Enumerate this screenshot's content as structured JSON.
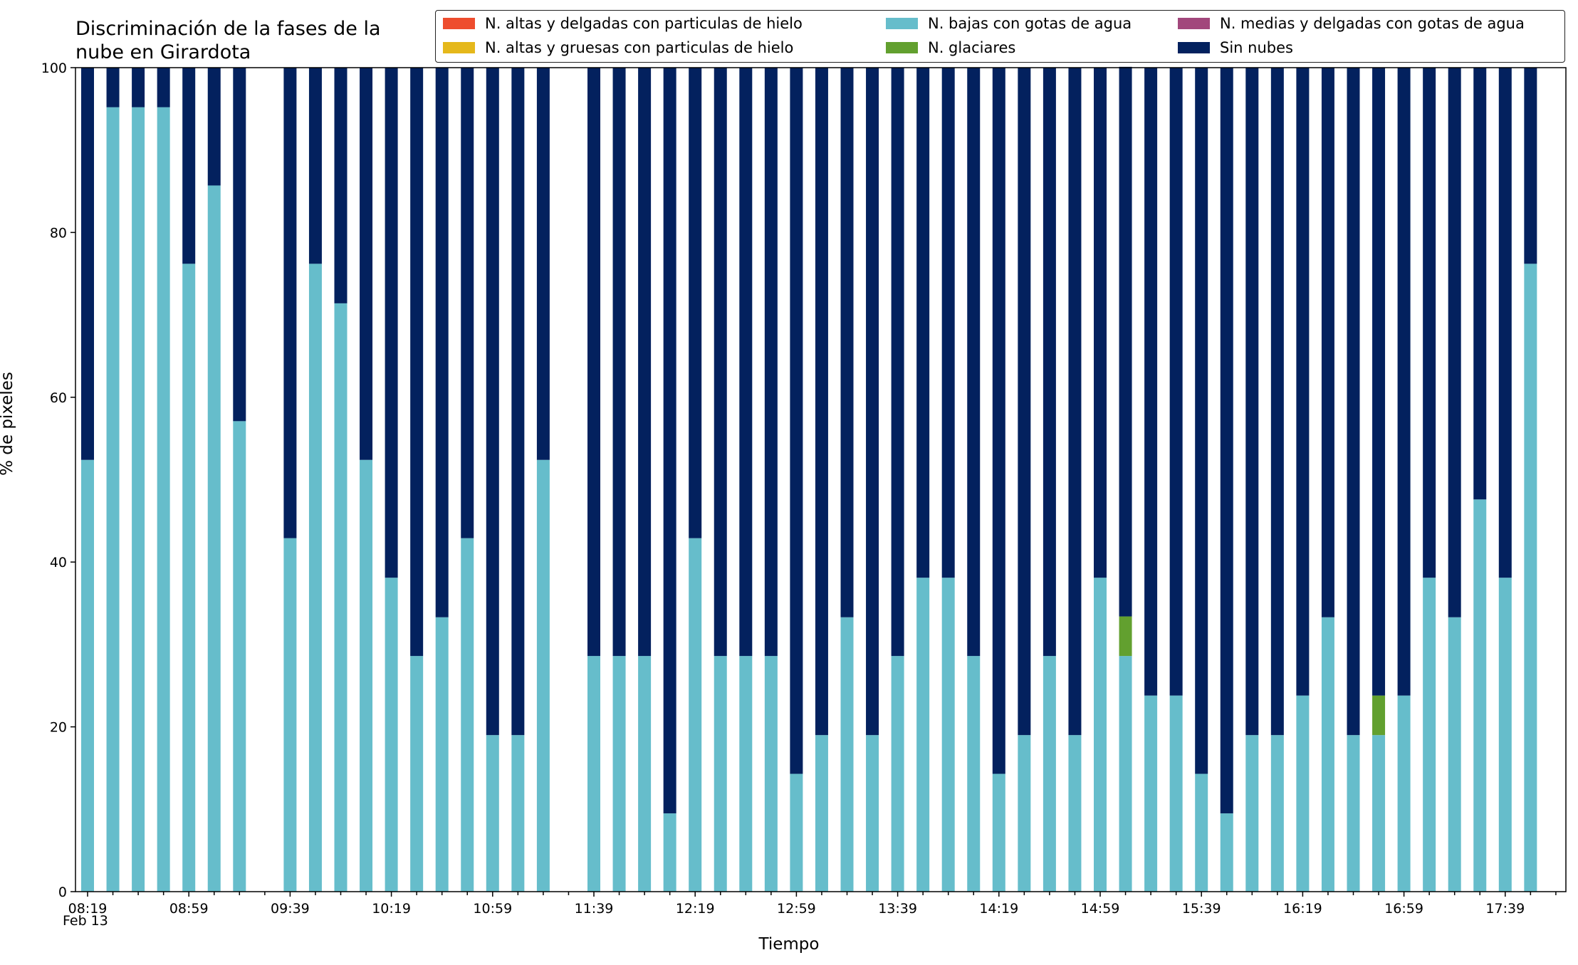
{
  "chart_data": {
    "type": "bar",
    "stacked": true,
    "title": "Discriminación de la fases de la nube en Girardota",
    "title_lines": [
      "Discriminación de la fases de la",
      "nube en Girardota"
    ],
    "xlabel": "Tiempo",
    "ylabel": "% de pixeles",
    "ylim": [
      0,
      100
    ],
    "yticks": [
      0,
      20,
      40,
      60,
      80,
      100
    ],
    "date_label": "Feb 13",
    "legend_position": "top-right",
    "grid": false,
    "x_start": "08:19",
    "x_step_minutes": 10,
    "x": [
      "08:19",
      "08:29",
      "08:39",
      "08:49",
      "08:59",
      "09:09",
      "09:19",
      "09:29",
      "09:39",
      "09:49",
      "09:59",
      "10:09",
      "10:19",
      "10:29",
      "10:39",
      "10:49",
      "10:59",
      "11:09",
      "11:19",
      "11:29",
      "11:39",
      "11:49",
      "11:59",
      "12:09",
      "12:19",
      "12:29",
      "12:39",
      "12:49",
      "12:59",
      "13:09",
      "13:19",
      "13:29",
      "13:39",
      "13:49",
      "13:59",
      "14:09",
      "14:19",
      "14:29",
      "14:39",
      "14:49",
      "14:59",
      "15:09",
      "15:19",
      "15:29",
      "15:39",
      "15:49",
      "15:59",
      "16:09",
      "16:19",
      "16:29",
      "16:39",
      "16:49",
      "16:59",
      "17:09",
      "17:19",
      "17:29",
      "17:39",
      "17:49"
    ],
    "xtick_labels": [
      "08:19",
      "08:59",
      "09:39",
      "10:19",
      "10:59",
      "11:39",
      "12:19",
      "12:59",
      "13:39",
      "14:19",
      "14:59",
      "15:39",
      "16:19",
      "16:59",
      "17:39"
    ],
    "series": [
      {
        "name": "N. altas y delgadas con particulas de hielo",
        "color": "#ee4d2e",
        "values": [
          0,
          0,
          0,
          0,
          0,
          0,
          0,
          null,
          0,
          0,
          0,
          0,
          0,
          0,
          0,
          0,
          0,
          0,
          0,
          null,
          0,
          0,
          0,
          0,
          0,
          0,
          0,
          0,
          0,
          0,
          0,
          0,
          0,
          0,
          0,
          0,
          0,
          0,
          0,
          0,
          0,
          0,
          0,
          0,
          0,
          0,
          0,
          0,
          0,
          0,
          0,
          0,
          0,
          0,
          0,
          0,
          0,
          0
        ]
      },
      {
        "name": "N. altas y gruesas con particulas de hielo",
        "color": "#e5b81b",
        "values": [
          0,
          0,
          0,
          0,
          0,
          0,
          0,
          null,
          0,
          0,
          0,
          0,
          0,
          0,
          0,
          0,
          0,
          0,
          0,
          null,
          0,
          0,
          0,
          0,
          0,
          0,
          0,
          0,
          0,
          0,
          0,
          0,
          0,
          0,
          0,
          0,
          0,
          0,
          0,
          0,
          0,
          0,
          0,
          0,
          0,
          0,
          0,
          0,
          0,
          0,
          0,
          0,
          0,
          0,
          0,
          0,
          0,
          0
        ]
      },
      {
        "name": "N. bajas con gotas de agua",
        "color": "#66bdcb",
        "values": [
          52.4,
          95.2,
          95.2,
          95.2,
          76.2,
          85.7,
          57.1,
          null,
          42.9,
          76.2,
          71.4,
          52.4,
          38.1,
          28.6,
          33.3,
          42.9,
          19.0,
          19.0,
          52.4,
          null,
          28.6,
          28.6,
          28.6,
          9.5,
          42.9,
          28.6,
          28.6,
          28.6,
          14.3,
          19.0,
          33.3,
          19.0,
          28.6,
          38.1,
          38.1,
          28.6,
          14.3,
          19.0,
          28.6,
          19.0,
          38.1,
          28.6,
          23.8,
          23.8,
          14.3,
          9.5,
          19.0,
          19.0,
          23.8,
          33.3,
          19.0,
          19.0,
          23.8,
          38.1,
          33.3,
          47.6,
          38.1,
          76.2
        ]
      },
      {
        "name": "N. glaciares",
        "color": "#62a02f",
        "values": [
          0,
          0,
          0,
          0,
          0,
          0,
          0,
          null,
          0,
          0,
          0,
          0,
          0,
          0,
          0,
          0,
          0,
          0,
          0,
          null,
          0,
          0,
          0,
          0,
          0,
          0,
          0,
          0,
          0,
          0,
          0,
          0,
          0,
          0,
          0,
          0,
          0,
          0,
          0,
          0,
          0,
          4.8,
          0,
          0,
          0,
          0,
          0,
          0,
          0,
          0,
          0,
          4.8,
          0,
          0,
          0,
          0,
          0,
          0
        ]
      },
      {
        "name": "N. medias y delgadas con gotas de agua",
        "color": "#a2477c",
        "values": [
          0,
          0,
          0,
          0,
          0,
          0,
          0,
          null,
          0,
          0,
          0,
          0,
          0,
          0,
          0,
          0,
          0,
          0,
          0,
          null,
          0,
          0,
          0,
          0,
          0,
          0,
          0,
          0,
          0,
          0,
          0,
          0,
          0,
          0,
          0,
          0,
          0,
          0,
          0,
          0,
          0,
          0,
          0,
          0,
          0,
          0,
          0,
          0,
          0,
          0,
          0,
          0,
          0,
          0,
          0,
          0,
          0,
          0
        ]
      },
      {
        "name": "Sin nubes",
        "color": "#03215e",
        "values": [
          47.6,
          4.8,
          4.8,
          4.8,
          23.8,
          14.3,
          42.9,
          null,
          57.1,
          23.8,
          28.6,
          47.6,
          61.9,
          71.4,
          66.7,
          57.1,
          81.0,
          81.0,
          47.6,
          null,
          71.4,
          71.4,
          71.4,
          90.5,
          57.1,
          71.4,
          71.4,
          71.4,
          85.7,
          81.0,
          66.7,
          81.0,
          71.4,
          61.9,
          61.9,
          71.4,
          85.7,
          81.0,
          71.4,
          81.0,
          61.9,
          66.7,
          76.2,
          76.2,
          85.7,
          90.5,
          81.0,
          81.0,
          76.2,
          66.7,
          81.0,
          76.2,
          76.2,
          61.9,
          66.7,
          52.4,
          61.9,
          23.8
        ]
      }
    ]
  }
}
